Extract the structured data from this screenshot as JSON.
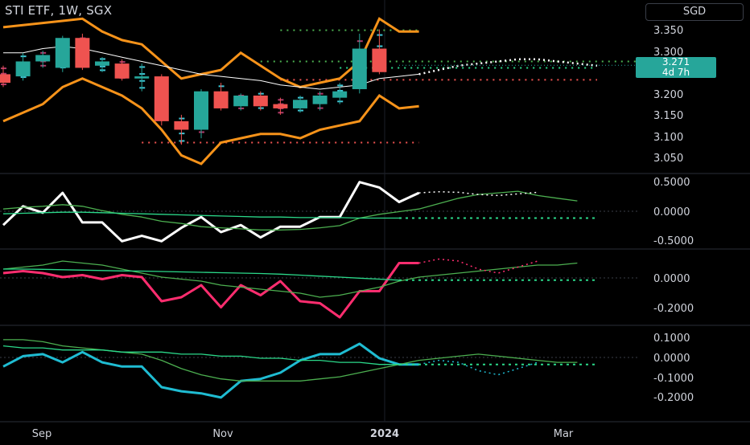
{
  "header": {
    "title": "STI ETF, 1W, SGX",
    "currency": "SGD"
  },
  "last_price": {
    "value": "3.271",
    "countdown": "4d 7h"
  },
  "x_axis_labels": [
    "Sep",
    "Nov",
    "2024",
    "Mar"
  ],
  "colors": {
    "background": "#000000",
    "up": "#26a69a",
    "down": "#ef5350",
    "band": "#f7931a",
    "ma_white": "#ffffff",
    "green_line": "#4caf50",
    "mint_line": "#2bd98a",
    "pink_line": "#ff2d6f",
    "cyan_line": "#1fbcd2",
    "maroon_dots": "#b03a6a",
    "cyan_dots": "#3fc6d6",
    "grid": "#2a2e39"
  },
  "chart_data": [
    {
      "type": "candlestick",
      "panel": "price",
      "y_ticks": [
        "3.350",
        "3.300",
        "3.250",
        "3.200",
        "3.150",
        "3.100",
        "3.050"
      ],
      "ylim": [
        3.025,
        3.39
      ],
      "x_range": [
        0,
        36
      ],
      "candles": [
        {
          "x": 0,
          "o": 3.25,
          "h": 3.27,
          "l": 3.22,
          "c": 3.23
        },
        {
          "x": 1,
          "o": 3.245,
          "h": 3.3,
          "l": 3.235,
          "c": 3.28
        },
        {
          "x": 2,
          "o": 3.28,
          "h": 3.305,
          "l": 3.265,
          "c": 3.295
        },
        {
          "x": 3,
          "o": 3.265,
          "h": 3.34,
          "l": 3.255,
          "c": 3.335
        },
        {
          "x": 4,
          "o": 3.335,
          "h": 3.345,
          "l": 3.26,
          "c": 3.265
        },
        {
          "x": 5,
          "o": 3.27,
          "h": 3.29,
          "l": 3.255,
          "c": 3.28
        },
        {
          "x": 6,
          "o": 3.275,
          "h": 3.285,
          "l": 3.235,
          "c": 3.24
        },
        {
          "x": 7,
          "o": 3.24,
          "h": 3.275,
          "l": 3.21,
          "c": 3.245
        },
        {
          "x": 8,
          "o": 3.245,
          "h": 3.25,
          "l": 3.13,
          "c": 3.14
        },
        {
          "x": 9,
          "o": 3.14,
          "h": 3.155,
          "l": 3.085,
          "c": 3.12
        },
        {
          "x": 10,
          "o": 3.12,
          "h": 3.215,
          "l": 3.1,
          "c": 3.21
        },
        {
          "x": 11,
          "o": 3.21,
          "h": 3.23,
          "l": 3.165,
          "c": 3.17
        },
        {
          "x": 12,
          "o": 3.175,
          "h": 3.205,
          "l": 3.165,
          "c": 3.2
        },
        {
          "x": 13,
          "o": 3.2,
          "h": 3.21,
          "l": 3.165,
          "c": 3.175
        },
        {
          "x": 14,
          "o": 3.18,
          "h": 3.195,
          "l": 3.155,
          "c": 3.17
        },
        {
          "x": 15,
          "o": 3.17,
          "h": 3.2,
          "l": 3.16,
          "c": 3.19
        },
        {
          "x": 16,
          "o": 3.18,
          "h": 3.21,
          "l": 3.165,
          "c": 3.2
        },
        {
          "x": 17,
          "o": 3.195,
          "h": 3.23,
          "l": 3.18,
          "c": 3.21
        },
        {
          "x": 18,
          "o": 3.215,
          "h": 3.345,
          "l": 3.205,
          "c": 3.31
        },
        {
          "x": 19,
          "o": 3.31,
          "h": 3.355,
          "l": 3.25,
          "c": 3.255
        }
      ],
      "upper_band": [
        3.36,
        3.365,
        3.37,
        3.375,
        3.38,
        3.35,
        3.33,
        3.32,
        3.28,
        3.24,
        3.25,
        3.26,
        3.3,
        3.27,
        3.24,
        3.22,
        3.23,
        3.24,
        3.28,
        3.38,
        3.35,
        3.35
      ],
      "lower_band": [
        3.14,
        3.16,
        3.18,
        3.22,
        3.24,
        3.22,
        3.2,
        3.17,
        3.12,
        3.06,
        3.04,
        3.09,
        3.1,
        3.11,
        3.11,
        3.1,
        3.12,
        3.13,
        3.14,
        3.2,
        3.17,
        3.175
      ],
      "ma_line": [
        3.3,
        3.3,
        3.31,
        3.315,
        3.31,
        3.3,
        3.29,
        3.28,
        3.27,
        3.26,
        3.25,
        3.245,
        3.24,
        3.235,
        3.225,
        3.22,
        3.215,
        3.22,
        3.225,
        3.24,
        3.245,
        3.25
      ],
      "ma_forecast": [
        3.25,
        3.26,
        3.27,
        3.275,
        3.28,
        3.285,
        3.285,
        3.28,
        3.275,
        3.27
      ],
      "dotted_levels": [
        {
          "y": 3.353,
          "x0": 14,
          "x1": 21,
          "color": "#4caf50"
        },
        {
          "y": 3.28,
          "x0": 13,
          "x1": 32,
          "color": "#4caf50"
        },
        {
          "y": 3.265,
          "x0": 17,
          "x1": 30,
          "color": "#2bd98a"
        },
        {
          "y": 3.237,
          "x0": 14,
          "x1": 30,
          "color": "#ef5350"
        },
        {
          "y": 3.09,
          "x0": 7,
          "x1": 21,
          "color": "#ef5350"
        }
      ]
    },
    {
      "type": "line",
      "panel": "oscillator-1",
      "y_ticks": [
        "0.5000",
        "0.0000",
        "-0.5000"
      ],
      "ylim": [
        -0.62,
        0.62
      ],
      "series": [
        {
          "color": "#ffffff",
          "values": [
            -0.25,
            0.1,
            -0.02,
            0.35,
            -0.2,
            -0.2,
            -0.55,
            -0.45,
            -0.55,
            -0.3,
            -0.1,
            -0.38,
            -0.25,
            -0.48,
            -0.28,
            -0.28,
            -0.1,
            -0.1,
            0.55,
            0.45,
            0.18,
            0.35
          ]
        },
        {
          "color": "#4caf50",
          "values": [
            0.05,
            0.08,
            0.1,
            0.13,
            0.1,
            0.02,
            -0.05,
            -0.1,
            -0.18,
            -0.22,
            -0.28,
            -0.3,
            -0.32,
            -0.34,
            -0.34,
            -0.33,
            -0.3,
            -0.26,
            -0.12,
            -0.05,
            0.0,
            0.05,
            0.15,
            0.25,
            0.32,
            0.35,
            0.38,
            0.3,
            0.25,
            0.2
          ]
        },
        {
          "color": "#2bd98a",
          "values": [
            -0.04,
            -0.03,
            -0.02,
            -0.01,
            -0.01,
            -0.02,
            -0.03,
            -0.04,
            -0.05,
            -0.06,
            -0.07,
            -0.08,
            -0.09,
            -0.1,
            -0.1,
            -0.11,
            -0.11,
            -0.11,
            -0.12,
            -0.12,
            -0.12
          ]
        }
      ]
    },
    {
      "type": "line",
      "panel": "oscillator-2",
      "y_ticks": [
        "0.0000",
        "-0.2000"
      ],
      "ylim": [
        -0.26,
        0.08
      ],
      "series": [
        {
          "color": "#ff2d6f",
          "values": [
            -0.02,
            -0.01,
            -0.02,
            -0.04,
            -0.03,
            -0.05,
            -0.03,
            -0.04,
            -0.16,
            -0.14,
            -0.08,
            -0.19,
            -0.08,
            -0.13,
            -0.06,
            -0.16,
            -0.17,
            -0.24,
            -0.11,
            -0.11,
            0.03,
            0.03
          ]
        },
        {
          "color": "#4caf50",
          "values": [
            0.0,
            0.01,
            0.02,
            0.04,
            0.03,
            0.02,
            0.0,
            -0.02,
            -0.04,
            -0.05,
            -0.06,
            -0.08,
            -0.09,
            -0.1,
            -0.11,
            -0.12,
            -0.14,
            -0.13,
            -0.11,
            -0.09,
            -0.06,
            -0.04,
            -0.03,
            -0.02,
            -0.01,
            0.0,
            0.01,
            0.02,
            0.02,
            0.03
          ]
        },
        {
          "color": "#2bd98a",
          "values": [
            0.0,
            0.0,
            -0.001,
            -0.003,
            -0.005,
            -0.007,
            -0.009,
            -0.01,
            -0.012,
            -0.014,
            -0.016,
            -0.018,
            -0.02,
            -0.022,
            -0.025,
            -0.03,
            -0.035,
            -0.04,
            -0.045,
            -0.05,
            -0.055
          ]
        }
      ]
    },
    {
      "type": "line",
      "panel": "oscillator-3",
      "y_ticks": [
        "0.1000",
        "0.0000",
        "-0.1000",
        "-0.2000"
      ],
      "ylim": [
        -0.22,
        0.13
      ],
      "series": [
        {
          "color": "#1fbcd2",
          "values": [
            -0.05,
            0.0,
            0.01,
            -0.03,
            0.02,
            -0.03,
            -0.05,
            -0.05,
            -0.15,
            -0.17,
            -0.18,
            -0.2,
            -0.12,
            -0.11,
            -0.08,
            -0.02,
            0.01,
            0.01,
            0.06,
            -0.01,
            -0.04,
            -0.04
          ]
        },
        {
          "color": "#4caf50",
          "values": [
            0.08,
            0.08,
            0.07,
            0.05,
            0.04,
            0.03,
            0.02,
            0.01,
            -0.02,
            -0.06,
            -0.09,
            -0.11,
            -0.12,
            -0.12,
            -0.12,
            -0.12,
            -0.11,
            -0.1,
            -0.08,
            -0.06,
            -0.04,
            -0.02,
            -0.01,
            0.0,
            0.01,
            0.0,
            -0.01,
            -0.02,
            -0.03,
            -0.03
          ]
        },
        {
          "color": "#2bd98a",
          "values": [
            0.05,
            0.04,
            0.04,
            0.03,
            0.03,
            0.03,
            0.02,
            0.02,
            0.02,
            0.01,
            0.01,
            0.0,
            0.0,
            -0.01,
            -0.01,
            -0.02,
            -0.02,
            -0.03,
            -0.03,
            -0.04,
            -0.04
          ]
        }
      ]
    }
  ]
}
